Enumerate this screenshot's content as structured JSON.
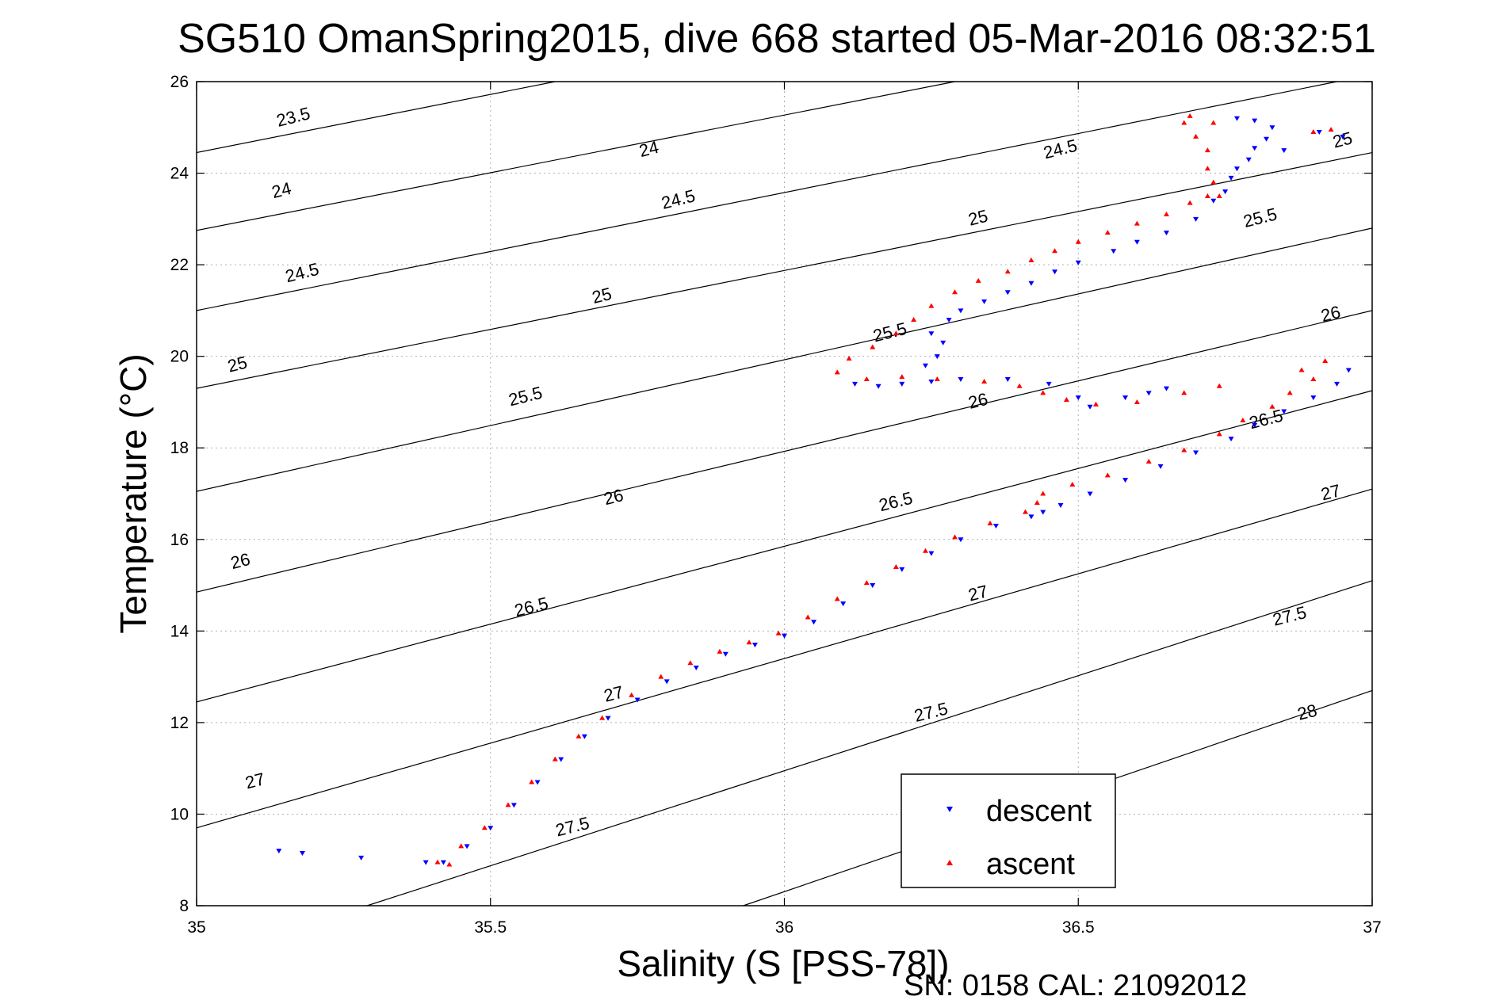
{
  "chart_data": {
    "type": "scatter",
    "title": "SG510 OmanSpring2015, dive 668 started 05-Mar-2016 08:32:51",
    "xlabel": "Salinity (S [PSS-78])",
    "ylabel": "Temperature (°C)",
    "footer": "SN: 0158  CAL: 21092012",
    "xlim": [
      35,
      37
    ],
    "ylim": [
      8,
      26
    ],
    "xticks": [
      35,
      35.5,
      36,
      36.5,
      37
    ],
    "xtick_labels": [
      "35",
      "35.5",
      "36",
      "36.5",
      "37"
    ],
    "yticks": [
      8,
      10,
      12,
      14,
      16,
      18,
      20,
      22,
      24,
      26
    ],
    "ytick_labels": [
      "8",
      "10",
      "12",
      "14",
      "16",
      "18",
      "20",
      "22",
      "24",
      "26"
    ],
    "grid": true,
    "legend_position": "bottom-right",
    "colors": {
      "descent": "#0000ff",
      "ascent": "#ff0000",
      "contour": "#000000",
      "grid": "#b0b0b0"
    },
    "contours": [
      {
        "sigma": 23.5,
        "labels": [
          {
            "text": "23.5",
            "s": 35.165,
            "t": 25.2
          },
          {
            "text": "24",
            "s": 35.77,
            "t": 24.5
          },
          {
            "text": "24.5",
            "s": 36.47,
            "t": 24.5
          },
          {
            "text": "25",
            "s": 36.95,
            "t": 24.7
          }
        ]
      },
      {
        "sigma": 24,
        "labels": [
          {
            "text": "24",
            "s": 35.145,
            "t": 23.6
          },
          {
            "text": "24.5",
            "s": 35.82,
            "t": 23.4
          },
          {
            "text": "25",
            "s": 36.33,
            "t": 23.0
          },
          {
            "text": "25.5",
            "s": 36.81,
            "t": 23.0
          }
        ]
      },
      {
        "sigma": 24.5,
        "labels": [
          {
            "text": "24.5",
            "s": 35.18,
            "t": 21.8
          },
          {
            "text": "25",
            "s": 35.69,
            "t": 21.3
          },
          {
            "text": "25.5",
            "s": 36.18,
            "t": 20.5
          },
          {
            "text": "26",
            "s": 36.93,
            "t": 20.9
          }
        ]
      },
      {
        "sigma": 25,
        "labels": [
          {
            "text": "25",
            "s": 35.07,
            "t": 19.8
          },
          {
            "text": "25.5",
            "s": 35.56,
            "t": 19.1
          },
          {
            "text": "26",
            "s": 36.33,
            "t": 19.0
          },
          {
            "text": "26.5",
            "s": 36.82,
            "t": 18.6
          }
        ]
      },
      {
        "sigma": 25.5,
        "labels": [
          {
            "text": "26",
            "s": 35.075,
            "t": 15.5
          },
          {
            "text": "26",
            "s": 35.71,
            "t": 16.9
          },
          {
            "text": "26.5",
            "s": 36.19,
            "t": 16.8
          },
          {
            "text": "27",
            "s": 36.93,
            "t": 17.0
          }
        ]
      },
      {
        "sigma": 26,
        "labels": [
          {
            "text": "27",
            "s": 35.1,
            "t": 10.7
          },
          {
            "text": "26.5",
            "s": 35.57,
            "t": 14.5
          },
          {
            "text": "27",
            "s": 36.33,
            "t": 14.8
          },
          {
            "text": "27.5",
            "s": 36.86,
            "t": 14.3
          }
        ]
      },
      {
        "sigma": 26.5,
        "labels": [
          {
            "text": "27",
            "s": 35.71,
            "t": 12.6
          },
          {
            "text": "27.5",
            "s": 36.25,
            "t": 12.2
          },
          {
            "text": "28",
            "s": 36.89,
            "t": 12.2
          }
        ]
      },
      {
        "sigma": 27,
        "labels": [
          {
            "text": "27.5",
            "s": 35.64,
            "t": 9.7
          }
        ]
      },
      {
        "sigma": 27.5,
        "labels": []
      },
      {
        "sigma": 28,
        "labels": []
      }
    ],
    "contour_lines": [
      {
        "level": "23.5",
        "points": [
          [
            35.0,
            24.45
          ],
          [
            35.61,
            26.0
          ]
        ]
      },
      {
        "level": "24",
        "points": [
          [
            35.0,
            22.75
          ],
          [
            36.29,
            26.0
          ]
        ]
      },
      {
        "level": "24.5",
        "points": [
          [
            35.0,
            21.0
          ],
          [
            36.94,
            26.0
          ]
        ]
      },
      {
        "level": "25",
        "points": [
          [
            35.0,
            19.3
          ],
          [
            37.0,
            24.45
          ]
        ]
      },
      {
        "level": "25.5",
        "points": [
          [
            35.0,
            17.05
          ],
          [
            37.0,
            22.8
          ]
        ]
      },
      {
        "level": "26",
        "points": [
          [
            35.0,
            14.85
          ],
          [
            37.0,
            21.0
          ]
        ]
      },
      {
        "level": "26.5",
        "points": [
          [
            35.0,
            12.45
          ],
          [
            37.0,
            19.25
          ]
        ]
      },
      {
        "level": "27",
        "points": [
          [
            35.0,
            9.7
          ],
          [
            37.0,
            17.1
          ]
        ]
      },
      {
        "level": "27.5",
        "points": [
          [
            35.29,
            8.0
          ],
          [
            37.0,
            15.1
          ]
        ]
      },
      {
        "level": "28",
        "points": [
          [
            35.93,
            8.0
          ],
          [
            37.0,
            12.7
          ]
        ]
      }
    ],
    "series": [
      {
        "name": "descent",
        "marker": "down-triangle",
        "points": [
          [
            35.14,
            9.2
          ],
          [
            35.18,
            9.15
          ],
          [
            35.28,
            9.05
          ],
          [
            35.39,
            8.95
          ],
          [
            35.42,
            8.95
          ],
          [
            35.46,
            9.3
          ],
          [
            35.5,
            9.7
          ],
          [
            35.54,
            10.2
          ],
          [
            35.58,
            10.7
          ],
          [
            35.62,
            11.2
          ],
          [
            35.66,
            11.7
          ],
          [
            35.7,
            12.1
          ],
          [
            35.75,
            12.5
          ],
          [
            35.8,
            12.9
          ],
          [
            35.85,
            13.2
          ],
          [
            35.9,
            13.5
          ],
          [
            35.95,
            13.7
          ],
          [
            36.0,
            13.9
          ],
          [
            36.05,
            14.2
          ],
          [
            36.1,
            14.6
          ],
          [
            36.15,
            15.0
          ],
          [
            36.2,
            15.35
          ],
          [
            36.25,
            15.7
          ],
          [
            36.3,
            16.0
          ],
          [
            36.36,
            16.3
          ],
          [
            36.42,
            16.5
          ],
          [
            36.44,
            16.6
          ],
          [
            36.47,
            16.75
          ],
          [
            36.52,
            17.0
          ],
          [
            36.58,
            17.3
          ],
          [
            36.64,
            17.6
          ],
          [
            36.7,
            17.9
          ],
          [
            36.76,
            18.2
          ],
          [
            36.8,
            18.5
          ],
          [
            36.85,
            18.8
          ],
          [
            36.9,
            19.1
          ],
          [
            36.94,
            19.4
          ],
          [
            36.96,
            19.7
          ],
          [
            36.12,
            19.4
          ],
          [
            36.16,
            19.35
          ],
          [
            36.2,
            19.4
          ],
          [
            36.25,
            19.45
          ],
          [
            36.3,
            19.5
          ],
          [
            36.38,
            19.5
          ],
          [
            36.45,
            19.4
          ],
          [
            36.5,
            19.1
          ],
          [
            36.52,
            18.9
          ],
          [
            36.58,
            19.1
          ],
          [
            36.62,
            19.2
          ],
          [
            36.65,
            19.3
          ],
          [
            36.24,
            19.8
          ],
          [
            36.26,
            20.0
          ],
          [
            36.27,
            20.3
          ],
          [
            36.25,
            20.5
          ],
          [
            36.28,
            20.8
          ],
          [
            36.3,
            21.0
          ],
          [
            36.34,
            21.2
          ],
          [
            36.38,
            21.4
          ],
          [
            36.42,
            21.6
          ],
          [
            36.46,
            21.85
          ],
          [
            36.5,
            22.05
          ],
          [
            36.56,
            22.3
          ],
          [
            36.6,
            22.5
          ],
          [
            36.65,
            22.7
          ],
          [
            36.7,
            23.0
          ],
          [
            36.73,
            23.4
          ],
          [
            36.75,
            23.6
          ],
          [
            36.76,
            23.9
          ],
          [
            36.77,
            24.1
          ],
          [
            36.79,
            24.3
          ],
          [
            36.8,
            24.55
          ],
          [
            36.82,
            24.75
          ],
          [
            36.83,
            25.0
          ],
          [
            36.8,
            25.15
          ],
          [
            36.77,
            25.2
          ],
          [
            36.95,
            24.8
          ],
          [
            36.91,
            24.9
          ],
          [
            36.85,
            24.5
          ]
        ]
      },
      {
        "name": "ascent",
        "marker": "up-triangle",
        "points": [
          [
            35.43,
            8.9
          ],
          [
            35.41,
            8.95
          ],
          [
            35.45,
            9.3
          ],
          [
            35.49,
            9.7
          ],
          [
            35.53,
            10.2
          ],
          [
            35.57,
            10.7
          ],
          [
            35.61,
            11.2
          ],
          [
            35.65,
            11.7
          ],
          [
            35.69,
            12.1
          ],
          [
            35.74,
            12.6
          ],
          [
            35.79,
            13.0
          ],
          [
            35.84,
            13.3
          ],
          [
            35.89,
            13.55
          ],
          [
            35.94,
            13.75
          ],
          [
            35.99,
            13.95
          ],
          [
            36.04,
            14.3
          ],
          [
            36.09,
            14.7
          ],
          [
            36.14,
            15.05
          ],
          [
            36.19,
            15.4
          ],
          [
            36.24,
            15.75
          ],
          [
            36.29,
            16.05
          ],
          [
            36.35,
            16.35
          ],
          [
            36.41,
            16.6
          ],
          [
            36.43,
            16.8
          ],
          [
            36.44,
            17.0
          ],
          [
            36.49,
            17.2
          ],
          [
            36.55,
            17.4
          ],
          [
            36.62,
            17.7
          ],
          [
            36.68,
            17.95
          ],
          [
            36.74,
            18.3
          ],
          [
            36.78,
            18.6
          ],
          [
            36.83,
            18.9
          ],
          [
            36.86,
            19.2
          ],
          [
            36.9,
            19.5
          ],
          [
            36.92,
            19.9
          ],
          [
            36.88,
            19.7
          ],
          [
            36.09,
            19.65
          ],
          [
            36.11,
            19.95
          ],
          [
            36.15,
            20.2
          ],
          [
            36.19,
            20.5
          ],
          [
            36.22,
            20.8
          ],
          [
            36.25,
            21.1
          ],
          [
            36.29,
            21.4
          ],
          [
            36.33,
            21.65
          ],
          [
            36.38,
            21.85
          ],
          [
            36.42,
            22.1
          ],
          [
            36.46,
            22.3
          ],
          [
            36.5,
            22.5
          ],
          [
            36.55,
            22.7
          ],
          [
            36.6,
            22.9
          ],
          [
            36.65,
            23.1
          ],
          [
            36.69,
            23.35
          ],
          [
            36.72,
            23.5
          ],
          [
            36.74,
            23.5
          ],
          [
            36.73,
            23.8
          ],
          [
            36.72,
            24.1
          ],
          [
            36.72,
            24.5
          ],
          [
            36.7,
            24.8
          ],
          [
            36.68,
            25.1
          ],
          [
            36.69,
            25.25
          ],
          [
            36.73,
            25.1
          ],
          [
            36.93,
            24.95
          ],
          [
            36.9,
            24.9
          ],
          [
            36.14,
            19.5
          ],
          [
            36.2,
            19.55
          ],
          [
            36.26,
            19.5
          ],
          [
            36.34,
            19.45
          ],
          [
            36.4,
            19.35
          ],
          [
            36.44,
            19.2
          ],
          [
            36.48,
            19.05
          ],
          [
            36.53,
            18.95
          ],
          [
            36.6,
            19.0
          ],
          [
            36.68,
            19.2
          ],
          [
            36.74,
            19.35
          ]
        ]
      }
    ],
    "legend": [
      {
        "label": "descent",
        "color": "#0000ff",
        "marker": "down-triangle"
      },
      {
        "label": "ascent",
        "color": "#ff0000",
        "marker": "up-triangle"
      }
    ]
  }
}
